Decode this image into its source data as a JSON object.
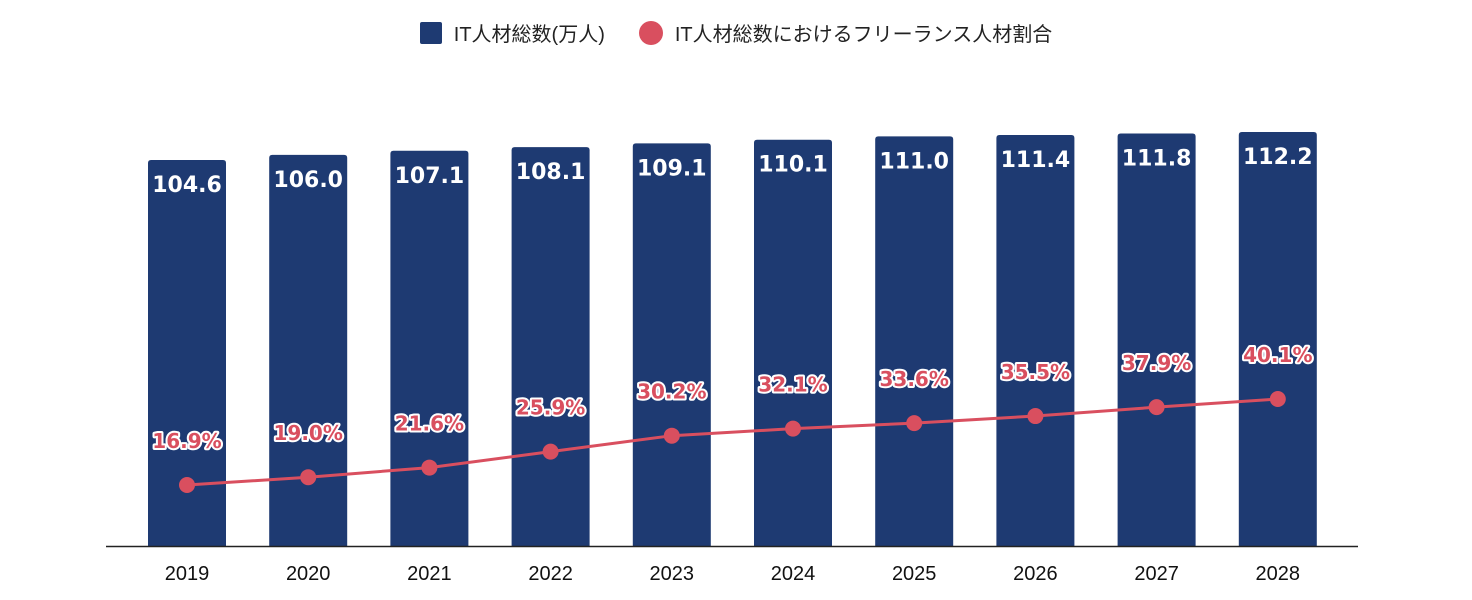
{
  "legend": {
    "bar_series": "IT人材総数(万人)",
    "line_series": "IT人材総数におけるフリーランス人材割合"
  },
  "colors": {
    "bar": "#1e3a72",
    "line": "#d94f5f",
    "axis": "#222222"
  },
  "chart_data": {
    "type": "bar",
    "categories": [
      "2019",
      "2020",
      "2021",
      "2022",
      "2023",
      "2024",
      "2025",
      "2026",
      "2027",
      "2028"
    ],
    "series": [
      {
        "name": "IT人材総数(万人)",
        "type": "bar",
        "values": [
          104.6,
          106.0,
          107.1,
          108.1,
          109.1,
          110.1,
          111.0,
          111.4,
          111.8,
          112.2
        ],
        "labels": [
          "104.6",
          "106.0",
          "107.1",
          "108.1",
          "109.1",
          "110.1",
          "111.0",
          "111.4",
          "111.8",
          "112.2"
        ]
      },
      {
        "name": "IT人材総数におけるフリーランス人材割合",
        "type": "line",
        "values": [
          16.9,
          19.0,
          21.6,
          25.9,
          30.2,
          32.1,
          33.6,
          35.5,
          37.9,
          40.1
        ],
        "labels": [
          "16.9%",
          "19.0%",
          "21.6%",
          "25.9%",
          "30.2%",
          "32.1%",
          "33.6%",
          "35.5%",
          "37.9%",
          "40.1%"
        ]
      }
    ],
    "title": "",
    "xlabel": "",
    "ylabel": "",
    "grid": false,
    "legend_position": "top-center"
  }
}
